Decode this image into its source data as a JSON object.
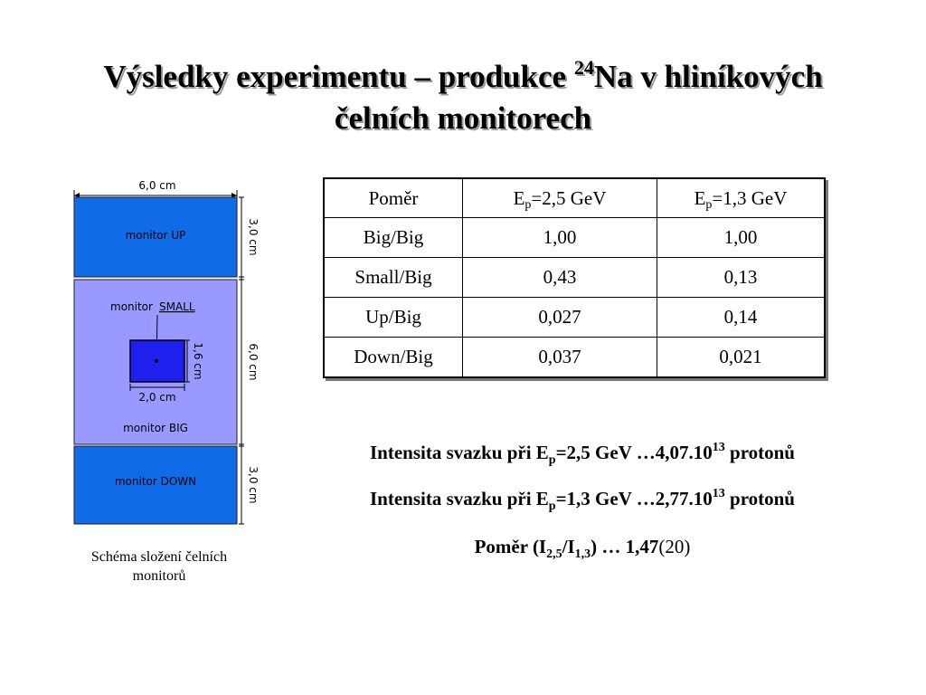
{
  "title": {
    "part1": "Výsledky experimentu – produkce ",
    "sup": "24",
    "part2": "Na v hliníkových",
    "line2": "čelních monitorech"
  },
  "diagram": {
    "width_label": "6,0 cm",
    "up_label": "monitor UP",
    "up_height": "3,0 cm",
    "small_label_prefix": "monitor ",
    "small_label_word": "SMALL",
    "small_height": "1,6 cm",
    "small_width": "2,0 cm",
    "big_label": "monitor BIG",
    "big_height": "6,0 cm",
    "down_label": "monitor DOWN",
    "down_height": "3,0 cm",
    "colors": {
      "up_down": "#0f6be6",
      "big": "#9999ff",
      "small": "#2020ee"
    }
  },
  "table": {
    "header": {
      "c0": "Poměr",
      "c1_pre": "E",
      "c1_sub": "p",
      "c1_post": "=2,5 GeV",
      "c2_pre": "E",
      "c2_sub": "p",
      "c2_post": "=1,3 GeV"
    },
    "rows": [
      [
        "Big/Big",
        "1,00",
        "1,00"
      ],
      [
        "Small/Big",
        "0,43",
        "0,13"
      ],
      [
        "Up/Big",
        "0,027",
        "0,14"
      ],
      [
        "Down/Big",
        "0,037",
        "0,021"
      ]
    ]
  },
  "caption": {
    "line1": "Schéma složení čelních",
    "line2": "monitorů"
  },
  "info": {
    "line1": {
      "pre": "Intensita svazku při E",
      "sub": "p",
      "mid": "=2,5 GeV …4,07.10",
      "sup": "13",
      "post": " protonů"
    },
    "line2": {
      "pre": "Intensita svazku při E",
      "sub": "p",
      "mid": "=1,3 GeV …2,77.10",
      "sup": "13",
      "post": " protonů"
    },
    "ratio": {
      "pre": "Poměr (I",
      "sub1": "2,5",
      "mid": "/I",
      "sub2": "1,3",
      "post": ") … 1,47",
      "unc": "(20)"
    }
  }
}
